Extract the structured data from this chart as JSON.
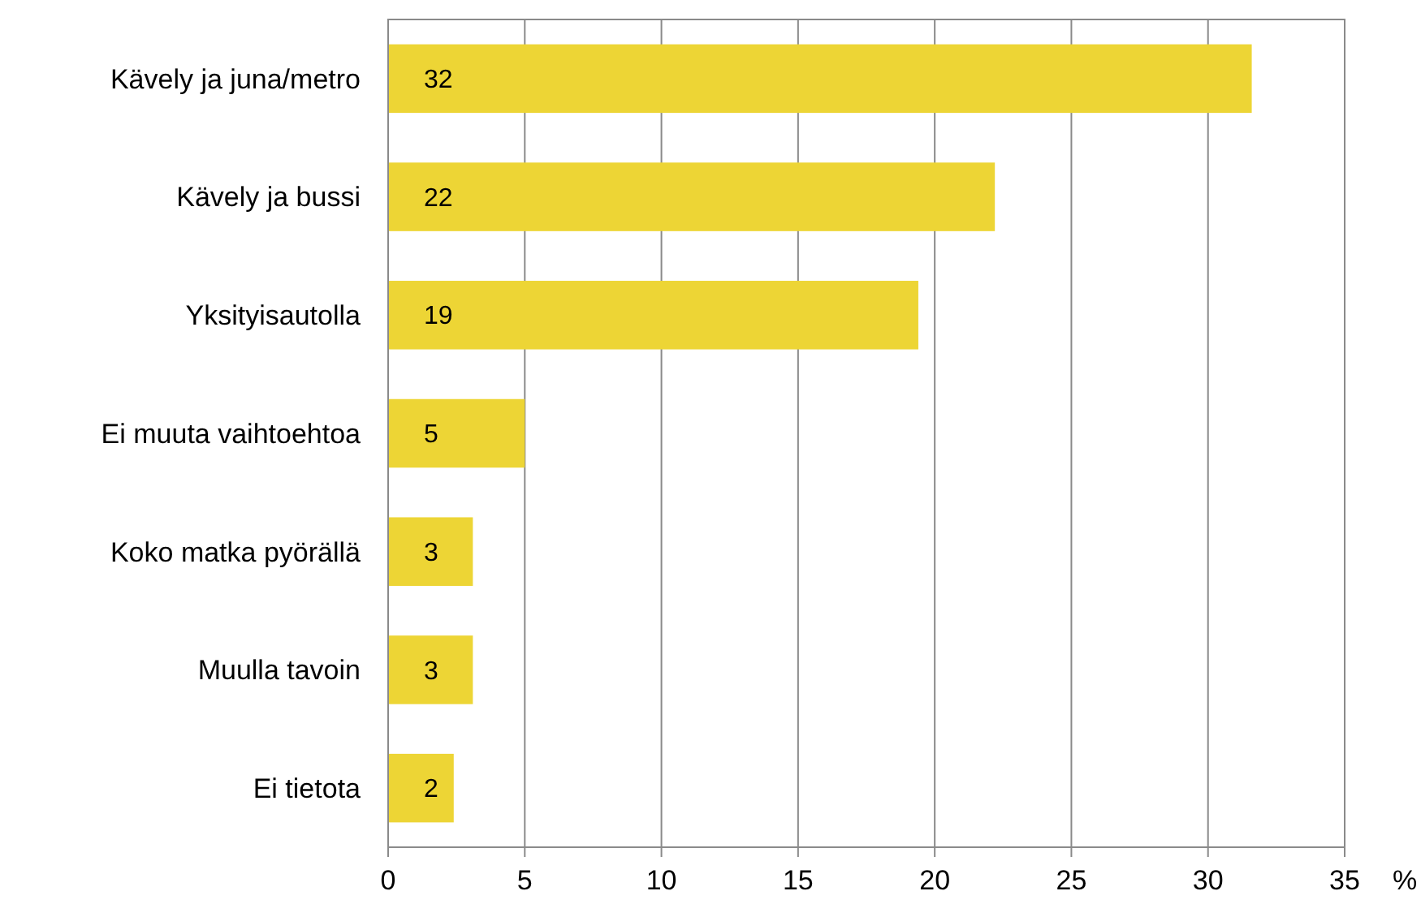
{
  "chart_data": {
    "type": "bar",
    "orientation": "horizontal",
    "xlabel": "%",
    "categories": [
      "Kävely ja juna/metro",
      "Kävely ja bussi",
      "Yksityisautolla",
      "Ei muuta vaihtoehtoa",
      "Koko matka pyörällä",
      "Muulla tavoin",
      "Ei tietota"
    ],
    "values": [
      31.6,
      22.2,
      19.4,
      5.0,
      3.1,
      3.1,
      2.4
    ],
    "value_labels": [
      "32",
      "22",
      "19",
      "5",
      "3",
      "3",
      "2"
    ],
    "color": "#edd535",
    "xlim": [
      0,
      35
    ],
    "xticks": [
      0,
      5,
      10,
      15,
      20,
      25,
      30,
      35
    ],
    "grid": "x"
  }
}
